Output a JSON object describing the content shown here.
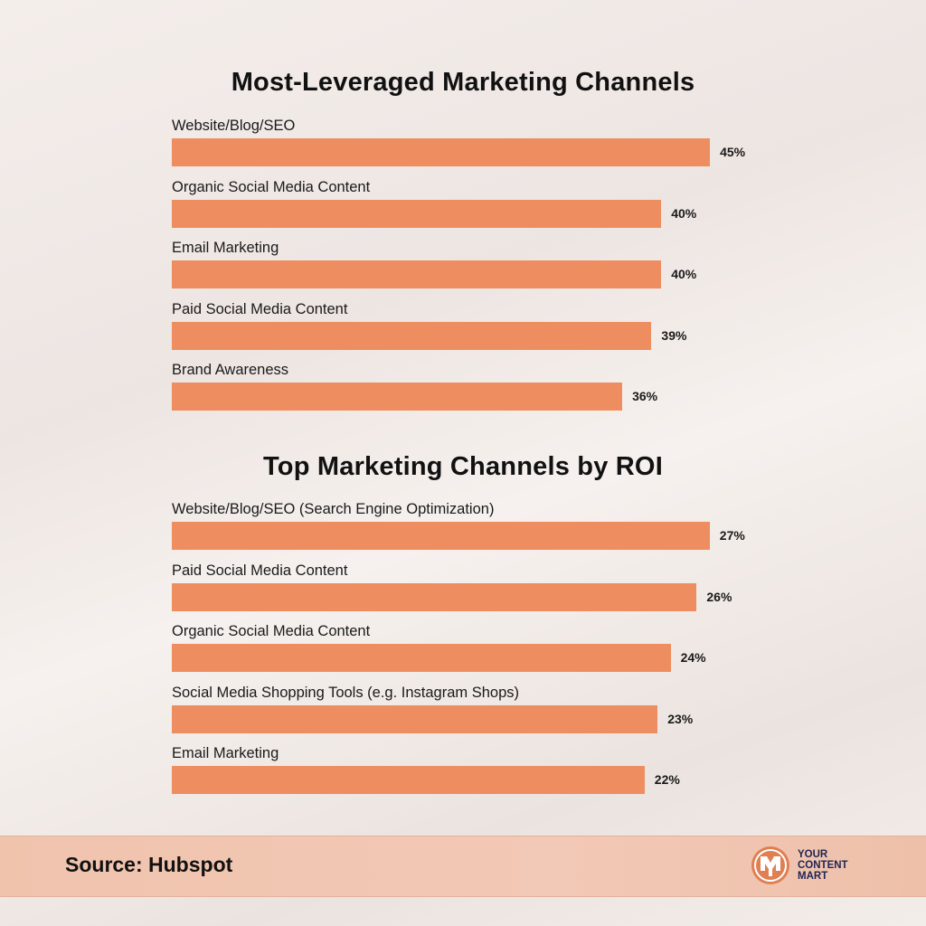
{
  "chart_data": [
    {
      "type": "bar",
      "orientation": "horizontal",
      "title": "Most-Leveraged Marketing Channels",
      "categories": [
        "Website/Blog/SEO",
        "Organic Social Media Content",
        "Email Marketing",
        "Paid Social Media Content",
        "Brand Awareness"
      ],
      "values": [
        45,
        40,
        40,
        39,
        36
      ],
      "labels": [
        "45%",
        "40%",
        "40%",
        "39%",
        "36%"
      ],
      "bar_color": "#ee8d60"
    },
    {
      "type": "bar",
      "orientation": "horizontal",
      "title": "Top Marketing Channels by ROI",
      "categories": [
        "Website/Blog/SEO (Search Engine Optimization)",
        "Paid Social Media Content",
        "Organic Social Media Content",
        "Social Media Shopping Tools (e.g. Instagram Shops)",
        "Email Marketing"
      ],
      "values": [
        27,
        26,
        24,
        23,
        22
      ],
      "labels": [
        "27%",
        "26%",
        "24%",
        "23%",
        "22%"
      ],
      "bar_color": "#ee8d60"
    }
  ],
  "footer": {
    "source": "Source: Hubspot",
    "logo_text": "YOUR CONTENT MART",
    "logo_lines": [
      "YOUR",
      "CONTENT",
      "MART"
    ]
  }
}
